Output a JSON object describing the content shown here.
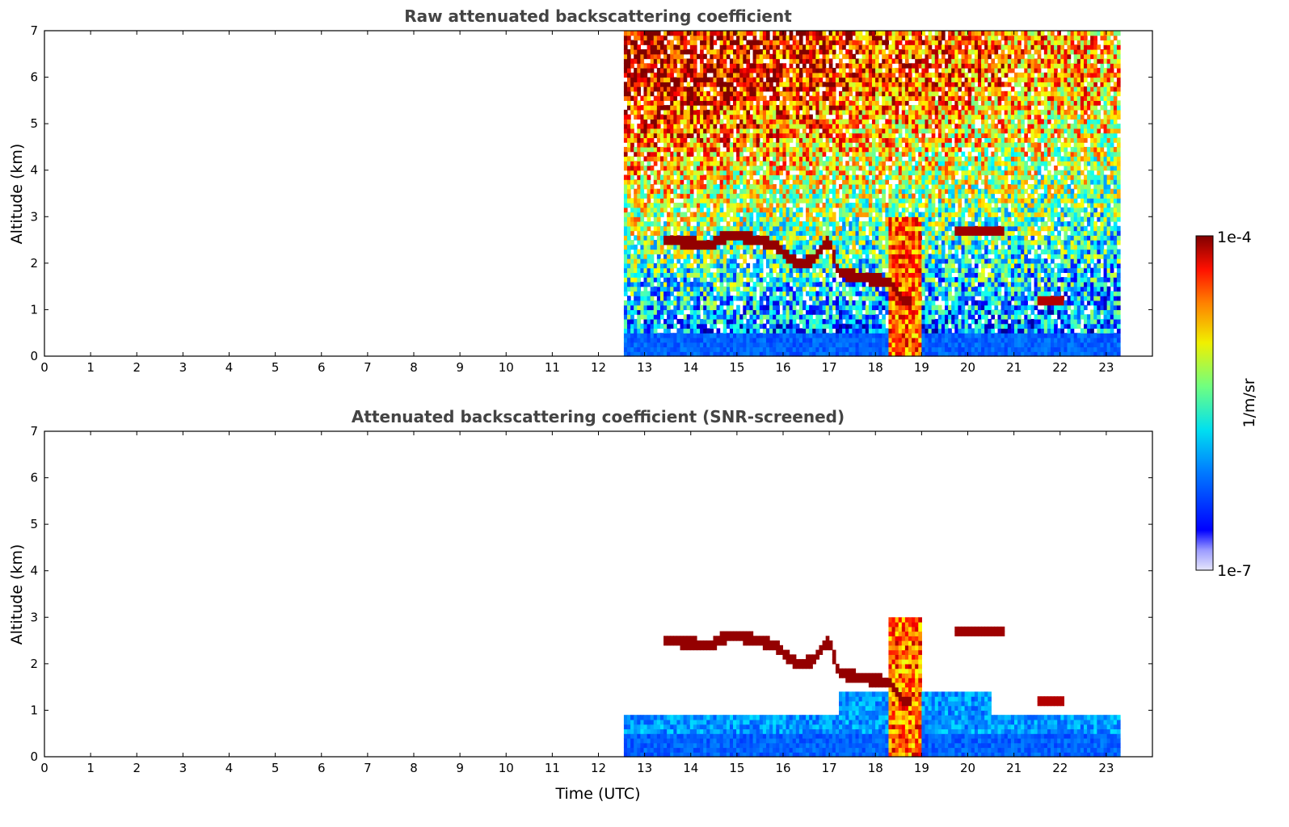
{
  "chart_data": [
    {
      "type": "heatmap",
      "title": "Raw attenuated backscattering coefficient",
      "xlabel": "",
      "ylabel": "Altitude (km)",
      "xlim": [
        0,
        24
      ],
      "ylim": [
        0,
        7
      ],
      "x_ticks": [
        "0",
        "1",
        "2",
        "3",
        "4",
        "5",
        "6",
        "7",
        "8",
        "9",
        "10",
        "11",
        "12",
        "13",
        "14",
        "15",
        "16",
        "17",
        "18",
        "19",
        "20",
        "21",
        "22",
        "23"
      ],
      "y_ticks": [
        "0",
        "1",
        "2",
        "3",
        "4",
        "5",
        "6",
        "7"
      ],
      "data_extent_hours": [
        12.55,
        23.3
      ],
      "screened": false,
      "cloud_layer": [
        {
          "x": 13.5,
          "y": 2.5
        },
        {
          "x": 14.0,
          "y": 2.45
        },
        {
          "x": 14.4,
          "y": 2.4
        },
        {
          "x": 14.8,
          "y": 2.6
        },
        {
          "x": 15.3,
          "y": 2.55
        },
        {
          "x": 15.8,
          "y": 2.4
        },
        {
          "x": 16.3,
          "y": 2.0
        },
        {
          "x": 16.6,
          "y": 2.05
        },
        {
          "x": 17.0,
          "y": 2.5
        },
        {
          "x": 17.2,
          "y": 1.8
        },
        {
          "x": 17.7,
          "y": 1.7
        },
        {
          "x": 18.3,
          "y": 1.6
        },
        {
          "x": 18.6,
          "y": 1.2
        }
      ],
      "features": [
        {
          "name": "mid-level layer",
          "x_start": 19.7,
          "x_end": 20.8,
          "y": 2.7
        },
        {
          "name": "low layer",
          "x_start": 21.5,
          "x_end": 22.1,
          "y": 1.2
        },
        {
          "name": "precipitation shaft",
          "x_start": 18.3,
          "x_end": 19.0,
          "y_top": 3.0
        }
      ]
    },
    {
      "type": "heatmap",
      "title": "Attenuated backscattering coefficient (SNR-screened)",
      "xlabel": "Time (UTC)",
      "ylabel": "Altitude (km)",
      "xlim": [
        0,
        24
      ],
      "ylim": [
        0,
        7
      ],
      "x_ticks": [
        "0",
        "1",
        "2",
        "3",
        "4",
        "5",
        "6",
        "7",
        "8",
        "9",
        "10",
        "11",
        "12",
        "13",
        "14",
        "15",
        "16",
        "17",
        "18",
        "19",
        "20",
        "21",
        "22",
        "23"
      ],
      "y_ticks": [
        "0",
        "1",
        "2",
        "3",
        "4",
        "5",
        "6",
        "7"
      ],
      "data_extent_hours": [
        12.55,
        23.3
      ],
      "screened": true
    }
  ],
  "colorbar": {
    "label": "1/m/sr",
    "max_label": "1e-4",
    "min_label": "1e-7",
    "colormap": "jet",
    "scale": "log"
  },
  "colors": {
    "title": "#444444",
    "cloud": "#800000",
    "aerosol": "#0a3cff"
  }
}
